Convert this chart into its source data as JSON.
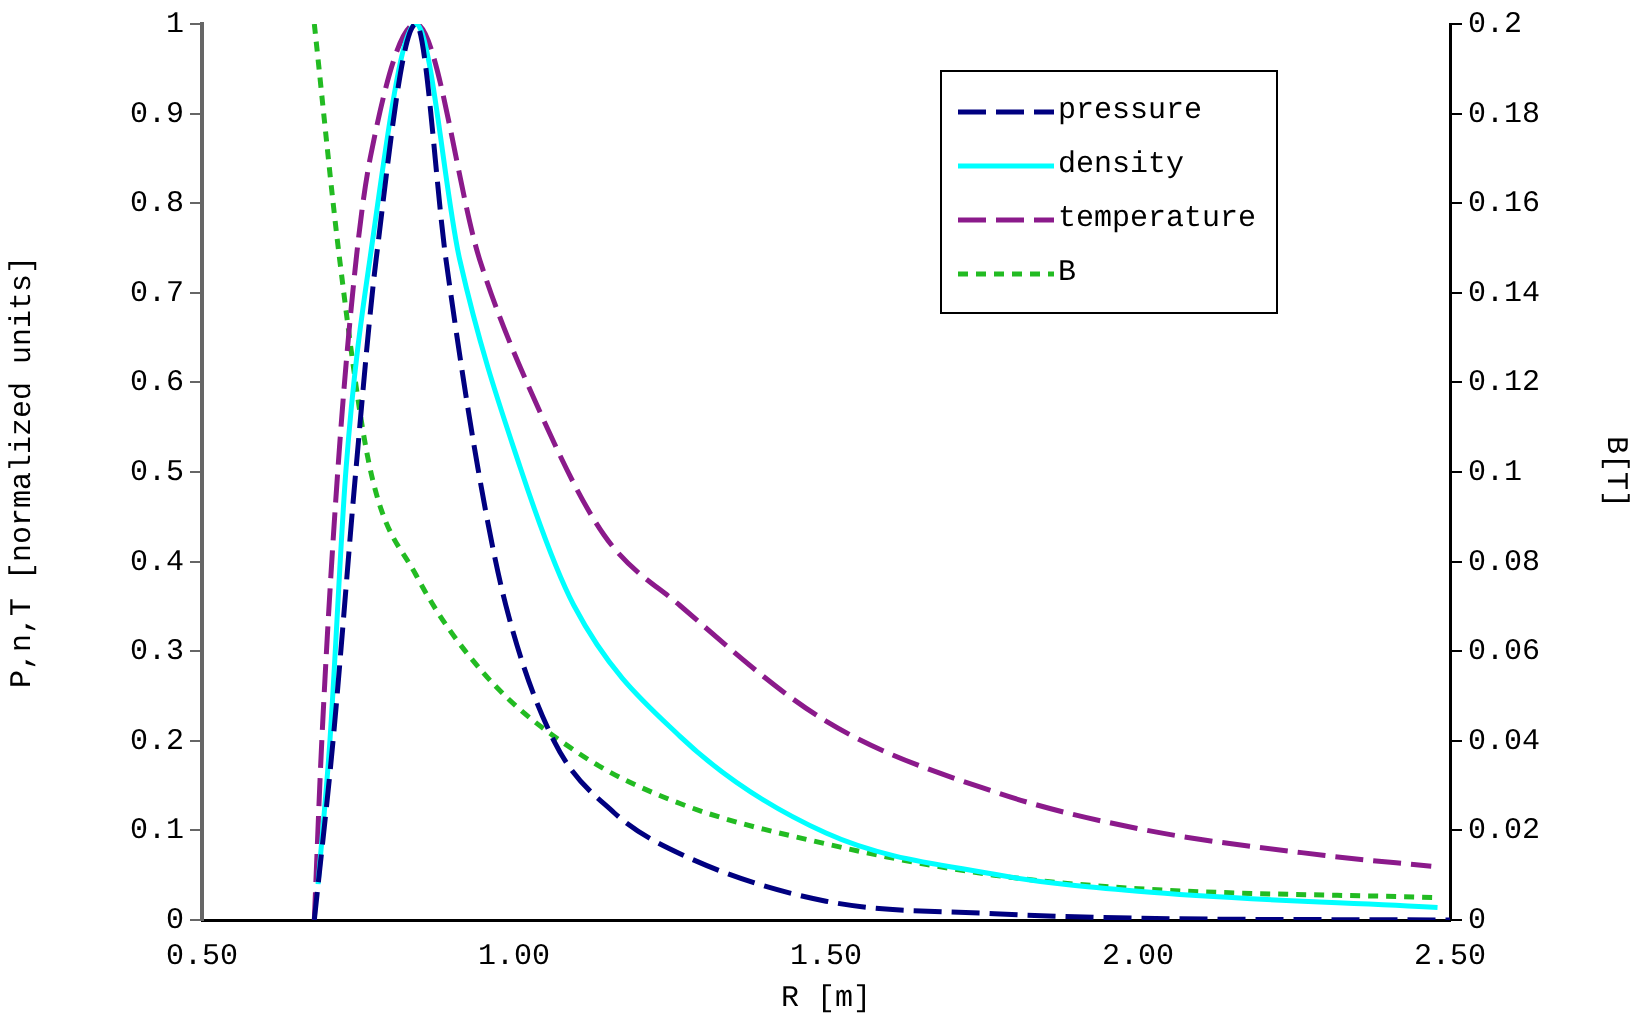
{
  "chart_data": {
    "type": "line",
    "xlabel": "R [m]",
    "ylabel": "P,n,T [normalized units]",
    "y2label": "B[T]",
    "xlim": [
      0.5,
      2.5
    ],
    "xticks": [
      {
        "value": 0.5,
        "label": "0.50"
      },
      {
        "value": 1,
        "label": "1.00"
      },
      {
        "value": 1.5,
        "label": "1.50"
      },
      {
        "value": 2,
        "label": "2.00"
      },
      {
        "value": 2.5,
        "label": "2.50"
      }
    ],
    "ylim": [
      0,
      1
    ],
    "yticks": [
      0,
      0.1,
      0.2,
      0.3,
      0.4,
      0.5,
      0.6,
      0.7,
      0.8,
      0.9,
      1
    ],
    "y2lim": [
      0,
      0.2
    ],
    "y2ticks": [
      0,
      0.02,
      0.04,
      0.06,
      0.08,
      0.1,
      0.12,
      0.14,
      0.16,
      0.18,
      0.2
    ],
    "legend": "top right",
    "marker": "none",
    "series": [
      {
        "name": "pressure",
        "color": "#000080",
        "line_style": "dashed",
        "x": [
          0.68,
          0.71,
          0.747,
          0.779,
          0.843,
          0.891,
          0.942,
          0.987,
          1.064,
          1.16,
          1.266,
          1.5,
          1.77,
          2.0,
          2.5
        ],
        "values": [
          0,
          0.2,
          0.505,
          0.737,
          1,
          0.737,
          0.505,
          0.351,
          0.2,
          0.12,
          0.074,
          0.021,
          0.007,
          0.002,
          0
        ]
      },
      {
        "name": "density",
        "color": "#00ffff",
        "line_style": "solid",
        "x": [
          0.686,
          0.705,
          0.731,
          0.769,
          0.843,
          0.913,
          1.01,
          1.096,
          1.266,
          1.5,
          1.77,
          2.0,
          2.48
        ],
        "values": [
          0.04,
          0.2,
          0.505,
          0.737,
          1,
          0.737,
          0.505,
          0.351,
          0.205,
          0.097,
          0.051,
          0.032,
          0.014
        ]
      },
      {
        "name": "temperature",
        "color": "#8b1a8b",
        "line_style": "dashed",
        "x": [
          0.68,
          0.692,
          0.718,
          0.747,
          0.77,
          0.843,
          0.945,
          1.032,
          1.144,
          1.266,
          1.5,
          1.77,
          2.0,
          2.3,
          2.47
        ],
        "values": [
          0,
          0.2,
          0.505,
          0.737,
          0.852,
          1,
          0.737,
          0.582,
          0.43,
          0.351,
          0.222,
          0.143,
          0.102,
          0.072,
          0.06
        ]
      },
      {
        "name": "B",
        "color": "#22bb22",
        "line_style": "dotted",
        "axis": "y2",
        "x": [
          0.68,
          0.721,
          0.769,
          0.843,
          0.952,
          1.106,
          1.266,
          1.5,
          1.77,
          2.0,
          2.48
        ],
        "values": [
          0.2,
          0.147,
          0.101,
          0.077,
          0.055,
          0.037,
          0.026,
          0.017,
          0.01,
          0.007,
          0.005
        ]
      }
    ]
  }
}
